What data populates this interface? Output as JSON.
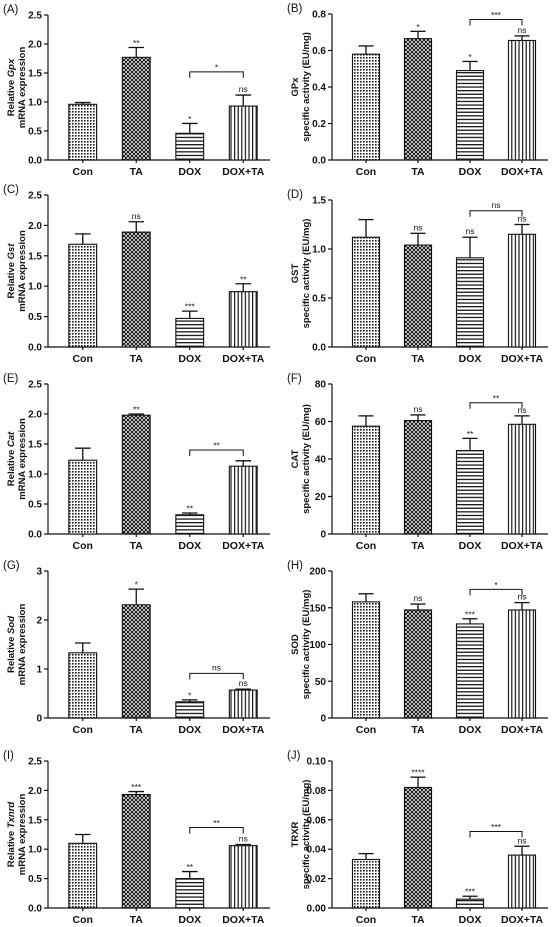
{
  "chart_data": [
    {
      "panel": "(A)",
      "type": "bar",
      "ylabel": [
        "Relative ",
        "Gpx",
        "mRNA expression"
      ],
      "categories": [
        "Con",
        "TA",
        "DOX",
        "DOX+TA"
      ],
      "values": [
        0.96,
        1.77,
        0.46,
        0.93
      ],
      "errors": [
        0.03,
        0.17,
        0.17,
        0.19
      ],
      "ylim": [
        0,
        2.5
      ],
      "yticks": [
        "0.0",
        "0.5",
        "1.0",
        "1.5",
        "2.0",
        "2.5"
      ],
      "bar_labels": [
        "",
        "**",
        "*",
        "ns"
      ],
      "brackets": [
        {
          "from": 2,
          "to": 3,
          "level": 1.52,
          "label": "*"
        }
      ]
    },
    {
      "panel": "(B)",
      "type": "bar",
      "ylabel": [
        "GPx",
        "specific activity (EU/mg)"
      ],
      "categories": [
        "Con",
        "TA",
        "DOX",
        "DOX+TA"
      ],
      "values": [
        0.58,
        0.665,
        0.49,
        0.655
      ],
      "errors": [
        0.045,
        0.04,
        0.05,
        0.025
      ],
      "ylim": [
        0,
        0.8
      ],
      "yticks": [
        "0.0",
        "0.2",
        "0.4",
        "0.6",
        "0.8"
      ],
      "bar_labels": [
        "",
        "*",
        "*",
        "ns"
      ],
      "brackets": [
        {
          "from": 2,
          "to": 3,
          "level": 0.77,
          "label": "***"
        }
      ]
    },
    {
      "panel": "(C)",
      "type": "bar",
      "ylabel": [
        "Relative ",
        "Gst",
        "mRNA expression"
      ],
      "categories": [
        "Con",
        "TA",
        "DOX",
        "DOX+TA"
      ],
      "values": [
        1.69,
        1.89,
        0.47,
        0.91
      ],
      "errors": [
        0.17,
        0.17,
        0.12,
        0.13
      ],
      "ylim": [
        0,
        2.5
      ],
      "yticks": [
        "0.0",
        "0.5",
        "1.0",
        "1.5",
        "2.0",
        "2.5"
      ],
      "bar_labels": [
        "",
        "ns",
        "***",
        "**"
      ],
      "brackets": []
    },
    {
      "panel": "(D)",
      "type": "bar",
      "ylabel": [
        "GST",
        "specific activity (EU/mg)"
      ],
      "categories": [
        "Con",
        "TA",
        "DOX",
        "DOX+TA"
      ],
      "values": [
        1.12,
        1.04,
        0.91,
        1.15
      ],
      "errors": [
        0.18,
        0.12,
        0.21,
        0.1
      ],
      "ylim": [
        0,
        1.5
      ],
      "yticks": [
        "0.0",
        "0.5",
        "1.0",
        "1.5"
      ],
      "bar_labels": [
        "",
        "ns",
        "ns",
        "ns"
      ],
      "brackets": [
        {
          "from": 2,
          "to": 3,
          "level": 1.39,
          "label": "ns"
        }
      ]
    },
    {
      "panel": "(E)",
      "type": "bar",
      "ylabel": [
        "Relative ",
        "Cat",
        "mRNA expression"
      ],
      "categories": [
        "Con",
        "TA",
        "DOX",
        "DOX+TA"
      ],
      "values": [
        1.23,
        1.98,
        0.32,
        1.13
      ],
      "errors": [
        0.2,
        0.02,
        0.03,
        0.09
      ],
      "ylim": [
        0,
        2.5
      ],
      "yticks": [
        "0.0",
        "0.5",
        "1.0",
        "1.5",
        "2.0",
        "2.5"
      ],
      "bar_labels": [
        "",
        "**",
        "**",
        ""
      ],
      "brackets": [
        {
          "from": 2,
          "to": 3,
          "level": 1.4,
          "label": "**"
        }
      ]
    },
    {
      "panel": "(F)",
      "type": "bar",
      "ylabel": [
        "CAT",
        "specific activity (EU/mg)"
      ],
      "categories": [
        "Con",
        "TA",
        "DOX",
        "DOX+TA"
      ],
      "values": [
        57.5,
        60.5,
        44.5,
        58.5
      ],
      "errors": [
        5.5,
        3.0,
        6.5,
        4.5
      ],
      "ylim": [
        0,
        80
      ],
      "yticks": [
        "0",
        "20",
        "40",
        "60",
        "80"
      ],
      "bar_labels": [
        "",
        "ns",
        "**",
        "ns"
      ],
      "brackets": [
        {
          "from": 2,
          "to": 3,
          "level": 70,
          "label": "**"
        }
      ]
    },
    {
      "panel": "(G)",
      "type": "bar",
      "ylabel": [
        "Relative ",
        "Sod",
        "mRNA expression"
      ],
      "categories": [
        "Con",
        "TA",
        "DOX",
        "DOX+TA"
      ],
      "values": [
        1.33,
        2.31,
        0.33,
        0.57
      ],
      "errors": [
        0.2,
        0.32,
        0.04,
        0.02
      ],
      "ylim": [
        0,
        3
      ],
      "yticks": [
        "0",
        "1",
        "2",
        "3"
      ],
      "bar_labels": [
        "",
        "*",
        "*",
        "ns"
      ],
      "brackets": [
        {
          "from": 2,
          "to": 3,
          "level": 0.91,
          "label": "ns"
        }
      ]
    },
    {
      "panel": "(H)",
      "type": "bar",
      "ylabel": [
        "SOD",
        "specific activity (EU/mg)"
      ],
      "categories": [
        "Con",
        "TA",
        "DOX",
        "DOX+TA"
      ],
      "values": [
        158,
        147,
        128,
        147
      ],
      "errors": [
        11,
        8,
        7,
        10
      ],
      "ylim": [
        0,
        200
      ],
      "yticks": [
        "0",
        "50",
        "100",
        "150",
        "200"
      ],
      "bar_labels": [
        "",
        "ns",
        "***",
        "ns"
      ],
      "brackets": [
        {
          "from": 2,
          "to": 3,
          "level": 175,
          "label": "*"
        }
      ]
    },
    {
      "panel": "(I)",
      "type": "bar",
      "ylabel": [
        "Relative ",
        "Txnrd",
        "mRNA expression"
      ],
      "categories": [
        "Con",
        "TA",
        "DOX",
        "DOX+TA"
      ],
      "values": [
        1.1,
        1.93,
        0.5,
        1.06
      ],
      "errors": [
        0.15,
        0.05,
        0.12,
        0.02
      ],
      "ylim": [
        0,
        2.5
      ],
      "yticks": [
        "0.0",
        "0.5",
        "1.0",
        "1.5",
        "2.0",
        "2.5"
      ],
      "bar_labels": [
        "",
        "***",
        "**",
        "ns"
      ],
      "brackets": [
        {
          "from": 2,
          "to": 3,
          "level": 1.37,
          "label": "**"
        }
      ]
    },
    {
      "panel": "(J)",
      "type": "bar",
      "ylabel": [
        "TRXR",
        "specific activity (EU/mg)"
      ],
      "categories": [
        "Con",
        "TA",
        "DOX",
        "DOX+TA"
      ],
      "values": [
        0.033,
        0.082,
        0.006,
        0.036
      ],
      "errors": [
        0.004,
        0.007,
        0.002,
        0.006
      ],
      "ylim": [
        0,
        0.1
      ],
      "yticks": [
        "0.00",
        "0.02",
        "0.04",
        "0.06",
        "0.08",
        "0.10"
      ],
      "bar_labels": [
        "",
        "****",
        "***",
        "ns"
      ],
      "brackets": [
        {
          "from": 2,
          "to": 3,
          "level": 0.052,
          "label": "***"
        }
      ]
    }
  ]
}
